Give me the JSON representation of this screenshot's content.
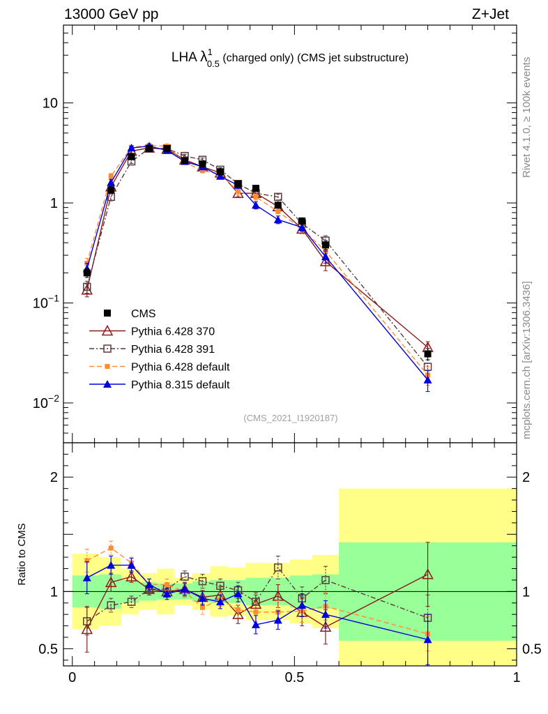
{
  "header": {
    "left": "13000 GeV pp",
    "right": "Z+Jet"
  },
  "title": {
    "prefix": "LHA ",
    "lambda": "λ",
    "sup": "1",
    "sub": "0.5",
    "suffix": " (charged only) (CMS jet substructure)"
  },
  "side_text": {
    "rivet": "Rivet 4.1.0, ≥ 100k events",
    "mcplots": "mcplots.cern.ch [arXiv:1306.3436]"
  },
  "analysis_id": "(CMS_2021_I1920187)",
  "ratio_ylabel": "Ratio to CMS",
  "colors": {
    "data": "#000000",
    "p370": "#8b1a1a",
    "p391": "#5a3a3a",
    "p6def": "#ff8c33",
    "p8": "#0000dd",
    "band_inner": "#99ff99",
    "band_outer": "#ffff88"
  },
  "chart_data": {
    "type": "line",
    "main_panel": {
      "yscale": "log",
      "ylim": [
        0.004,
        60
      ],
      "yticks": [
        {
          "value": 10,
          "label": "10"
        },
        {
          "value": 1,
          "label": "1"
        },
        {
          "value": 0.1,
          "label": "10",
          "exp": "−1"
        },
        {
          "value": 0.01,
          "label": "10",
          "exp": "−2"
        }
      ]
    },
    "ratio_panel": {
      "ylim": [
        0.35,
        2.3
      ],
      "yticks": [
        {
          "value": 2,
          "label": "2"
        },
        {
          "value": 1,
          "label": "1"
        },
        {
          "value": 0.5,
          "label": "0.5"
        }
      ]
    },
    "xlim": [
      -0.02,
      1.0
    ],
    "xticks": [
      {
        "value": 0,
        "label": "0"
      },
      {
        "value": 0.5,
        "label": "0.5"
      },
      {
        "value": 1,
        "label": "1"
      }
    ],
    "bins": [
      [
        0.0,
        0.06
      ],
      [
        0.06,
        0.11
      ],
      [
        0.11,
        0.15
      ],
      [
        0.15,
        0.19
      ],
      [
        0.19,
        0.23
      ],
      [
        0.23,
        0.27
      ],
      [
        0.27,
        0.31
      ],
      [
        0.31,
        0.35
      ],
      [
        0.35,
        0.39
      ],
      [
        0.39,
        0.43
      ],
      [
        0.43,
        0.49
      ],
      [
        0.49,
        0.54
      ],
      [
        0.54,
        0.6
      ],
      [
        0.6,
        1.0
      ]
    ],
    "x": [
      0.033,
      0.087,
      0.133,
      0.173,
      0.213,
      0.253,
      0.293,
      0.333,
      0.373,
      0.413,
      0.463,
      0.517,
      0.57,
      0.8
    ],
    "band_inner": [
      0.14,
      0.15,
      0.1,
      0.08,
      0.07,
      0.07,
      0.09,
      0.1,
      0.1,
      0.12,
      0.12,
      0.14,
      0.15,
      0.43
    ],
    "band_outer": [
      0.33,
      0.3,
      0.2,
      0.16,
      0.2,
      0.12,
      0.16,
      0.22,
      0.21,
      0.25,
      0.25,
      0.28,
      0.32,
      0.9
    ],
    "legend": [
      {
        "key": "data",
        "label": "CMS"
      },
      {
        "key": "p370",
        "label": "Pythia 6.428 370"
      },
      {
        "key": "p391",
        "label": "Pythia 6.428 391"
      },
      {
        "key": "p6def",
        "label": "Pythia 6.428 default"
      },
      {
        "key": "p8",
        "label": "Pythia 8.315 default"
      }
    ],
    "series": [
      {
        "key": "data",
        "name": "CMS",
        "values": [
          0.2,
          1.35,
          2.9,
          3.5,
          3.5,
          2.65,
          2.45,
          2.05,
          1.55,
          1.4,
          0.95,
          0.66,
          0.38,
          0.031
        ],
        "errors": [
          0.02,
          0.1,
          0.15,
          0.15,
          0.15,
          0.12,
          0.1,
          0.1,
          0.08,
          0.08,
          0.06,
          0.05,
          0.04,
          0.004
        ]
      },
      {
        "key": "p370",
        "name": "Pythia 6.428 370",
        "values": [
          0.135,
          1.45,
          3.3,
          3.55,
          3.45,
          2.7,
          2.3,
          2.0,
          1.25,
          1.25,
          0.92,
          0.55,
          0.26,
          0.036
        ],
        "errors": [
          0.02,
          0.1,
          0.15,
          0.15,
          0.15,
          0.12,
          0.12,
          0.1,
          0.1,
          0.1,
          0.08,
          0.06,
          0.05,
          0.005
        ],
        "ratio": [
          0.67,
          1.08,
          1.13,
          1.02,
          1.0,
          1.02,
          0.95,
          0.97,
          0.8,
          0.89,
          0.96,
          0.82,
          0.69,
          1.15
        ],
        "ratio_err": [
          0.2,
          0.08,
          0.05,
          0.05,
          0.05,
          0.06,
          0.06,
          0.07,
          0.08,
          0.08,
          0.1,
          0.12,
          0.15,
          0.28
        ]
      },
      {
        "key": "p391",
        "name": "Pythia 6.428 391",
        "values": [
          0.145,
          1.15,
          2.6,
          3.5,
          3.5,
          2.95,
          2.7,
          2.15,
          1.55,
          1.25,
          1.15,
          0.62,
          0.42,
          0.023
        ],
        "errors": [
          0.02,
          0.1,
          0.12,
          0.15,
          0.15,
          0.12,
          0.12,
          0.1,
          0.1,
          0.1,
          0.08,
          0.06,
          0.05,
          0.004
        ],
        "ratio": [
          0.74,
          0.88,
          0.91,
          1.02,
          1.02,
          1.13,
          1.09,
          1.05,
          1.01,
          0.91,
          1.21,
          0.94,
          1.1,
          0.77
        ],
        "ratio_err": [
          0.12,
          0.06,
          0.05,
          0.05,
          0.05,
          0.05,
          0.06,
          0.06,
          0.07,
          0.08,
          0.1,
          0.1,
          0.12,
          0.2
        ]
      },
      {
        "key": "p6def",
        "name": "Pythia 6.428 default",
        "values": [
          0.25,
          1.85,
          3.6,
          3.75,
          3.7,
          2.55,
          2.1,
          1.95,
          1.3,
          1.15,
          0.82,
          0.55,
          0.33,
          0.019
        ],
        "errors": [
          0.03,
          0.12,
          0.15,
          0.15,
          0.15,
          0.12,
          0.1,
          0.1,
          0.1,
          0.08,
          0.08,
          0.06,
          0.05,
          0.004
        ],
        "ratio": [
          1.27,
          1.38,
          1.25,
          1.06,
          1.06,
          1.0,
          0.86,
          0.93,
          0.84,
          0.82,
          0.82,
          0.83,
          0.87,
          0.63
        ],
        "ratio_err": [
          0.1,
          0.06,
          0.05,
          0.05,
          0.05,
          0.05,
          0.06,
          0.06,
          0.07,
          0.08,
          0.1,
          0.1,
          0.12,
          0.15
        ]
      },
      {
        "key": "p8",
        "name": "Pythia 8.315 default",
        "values": [
          0.22,
          1.6,
          3.55,
          3.7,
          3.35,
          2.6,
          2.3,
          1.85,
          1.5,
          0.95,
          0.68,
          0.57,
          0.29,
          0.017
        ],
        "errors": [
          0.03,
          0.12,
          0.15,
          0.15,
          0.15,
          0.12,
          0.1,
          0.1,
          0.1,
          0.08,
          0.06,
          0.05,
          0.04,
          0.004
        ],
        "ratio": [
          1.12,
          1.23,
          1.23,
          1.06,
          0.98,
          1.02,
          0.94,
          0.91,
          0.98,
          0.71,
          0.75,
          0.88,
          0.8,
          0.58
        ],
        "ratio_err": [
          0.14,
          0.08,
          0.06,
          0.05,
          0.05,
          0.05,
          0.06,
          0.06,
          0.07,
          0.08,
          0.08,
          0.1,
          0.12,
          0.22
        ]
      }
    ]
  }
}
